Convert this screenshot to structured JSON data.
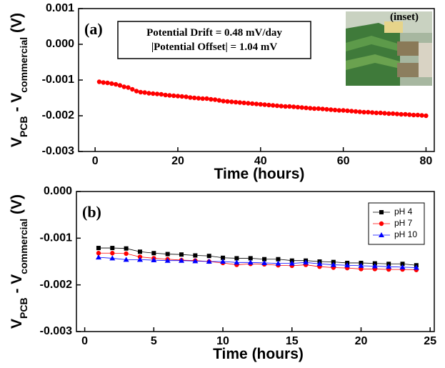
{
  "chart_data": [
    {
      "type": "scatter",
      "panel_label": "(a)",
      "xlabel": "Time (hours)",
      "ylabel_parts": [
        "V",
        "PCB",
        " - V",
        "commercial",
        " (V)"
      ],
      "annotations": [
        "Potential Drift = 0.48 mV/day",
        "|Potential Offset| = 1.04 mV"
      ],
      "inset_label": "(inset)",
      "xlim": [
        -4,
        82
      ],
      "xticks": [
        0,
        20,
        40,
        60,
        80
      ],
      "ylim": [
        -0.003,
        0.001
      ],
      "yticks": [
        -0.003,
        -0.002,
        -0.001,
        {
          "value": 0,
          "label": "0.000"
        },
        0.001
      ],
      "x": [
        1,
        2,
        3,
        4,
        5,
        6,
        7,
        8,
        9,
        10,
        11,
        12,
        13,
        14,
        15,
        16,
        17,
        18,
        19,
        20,
        21,
        22,
        23,
        24,
        25,
        26,
        27,
        28,
        29,
        30,
        31,
        32,
        33,
        34,
        35,
        36,
        37,
        38,
        39,
        40,
        41,
        42,
        43,
        44,
        45,
        46,
        47,
        48,
        49,
        50,
        51,
        52,
        53,
        54,
        55,
        56,
        57,
        58,
        59,
        60,
        61,
        62,
        63,
        64,
        65,
        66,
        67,
        68,
        69,
        70,
        71,
        72,
        73,
        74,
        75,
        76,
        77,
        78,
        79,
        80
      ],
      "series": [
        {
          "color": "#ff0000",
          "values": [
            -0.00105,
            -0.00107,
            -0.00108,
            -0.0011,
            -0.00112,
            -0.00115,
            -0.00119,
            -0.00121,
            -0.00126,
            -0.00131,
            -0.00134,
            -0.00135,
            -0.00137,
            -0.00138,
            -0.00139,
            -0.0014,
            -0.00142,
            -0.00143,
            -0.00144,
            -0.00145,
            -0.00146,
            -0.00147,
            -0.00149,
            -0.0015,
            -0.00151,
            -0.00152,
            -0.00152,
            -0.00154,
            -0.00155,
            -0.00157,
            -0.00159,
            -0.0016,
            -0.00161,
            -0.00162,
            -0.00163,
            -0.00164,
            -0.00165,
            -0.00166,
            -0.00167,
            -0.00168,
            -0.00169,
            -0.0017,
            -0.00171,
            -0.00172,
            -0.00173,
            -0.00174,
            -0.00174,
            -0.00175,
            -0.00176,
            -0.00177,
            -0.00178,
            -0.00179,
            -0.0018,
            -0.0018,
            -0.00181,
            -0.00182,
            -0.00183,
            -0.00184,
            -0.00185,
            -0.00185,
            -0.00186,
            -0.00187,
            -0.00188,
            -0.00189,
            -0.0019,
            -0.0019,
            -0.00191,
            -0.00192,
            -0.00192,
            -0.00193,
            -0.00194,
            -0.00194,
            -0.00195,
            -0.00196,
            -0.00196,
            -0.00197,
            -0.00198,
            -0.00198,
            -0.00199,
            -0.002
          ]
        }
      ]
    },
    {
      "type": "line",
      "panel_label": "(b)",
      "xlabel": "Time (hours)",
      "ylabel_parts": [
        "V",
        "PCB",
        " - V",
        "commercial",
        " (V)"
      ],
      "legend": "upper right",
      "xlim": [
        -0.6,
        25.3
      ],
      "xticks": [
        0,
        5,
        10,
        15,
        20,
        25
      ],
      "ylim": [
        -0.003,
        0
      ],
      "yticks": [
        -0.003,
        -0.002,
        -0.001,
        {
          "value": 0,
          "label": "0.000"
        }
      ],
      "x": [
        1,
        2,
        3,
        4,
        5,
        6,
        7,
        8,
        9,
        10,
        11,
        12,
        13,
        14,
        15,
        16,
        17,
        18,
        19,
        20,
        21,
        22,
        23,
        24
      ],
      "series": [
        {
          "name": "pH 4",
          "color": "#000000",
          "marker": "square",
          "values": [
            -0.00121,
            -0.00121,
            -0.00122,
            -0.00129,
            -0.00132,
            -0.00134,
            -0.00135,
            -0.00137,
            -0.00138,
            -0.00142,
            -0.00143,
            -0.00143,
            -0.00145,
            -0.00145,
            -0.00148,
            -0.00148,
            -0.0015,
            -0.00151,
            -0.00153,
            -0.00153,
            -0.00154,
            -0.00155,
            -0.00155,
            -0.00158
          ]
        },
        {
          "name": "pH 7",
          "color": "#ff0000",
          "marker": "circle",
          "values": [
            -0.00132,
            -0.00132,
            -0.00133,
            -0.0014,
            -0.00143,
            -0.00145,
            -0.00147,
            -0.00148,
            -0.0015,
            -0.00153,
            -0.00157,
            -0.00155,
            -0.00156,
            -0.00158,
            -0.00159,
            -0.00157,
            -0.00161,
            -0.00163,
            -0.00164,
            -0.00166,
            -0.00166,
            -0.00167,
            -0.00167,
            -0.00168
          ]
        },
        {
          "name": "pH 10",
          "color": "#0000ff",
          "marker": "triangle",
          "values": [
            -0.00141,
            -0.00143,
            -0.00146,
            -0.00146,
            -0.00147,
            -0.00148,
            -0.00148,
            -0.00149,
            -0.0015,
            -0.0015,
            -0.00152,
            -0.00152,
            -0.00153,
            -0.00154,
            -0.00154,
            -0.00152,
            -0.00155,
            -0.00157,
            -0.00158,
            -0.00159,
            -0.0016,
            -0.00161,
            -0.00162,
            -0.00163
          ]
        }
      ]
    }
  ]
}
